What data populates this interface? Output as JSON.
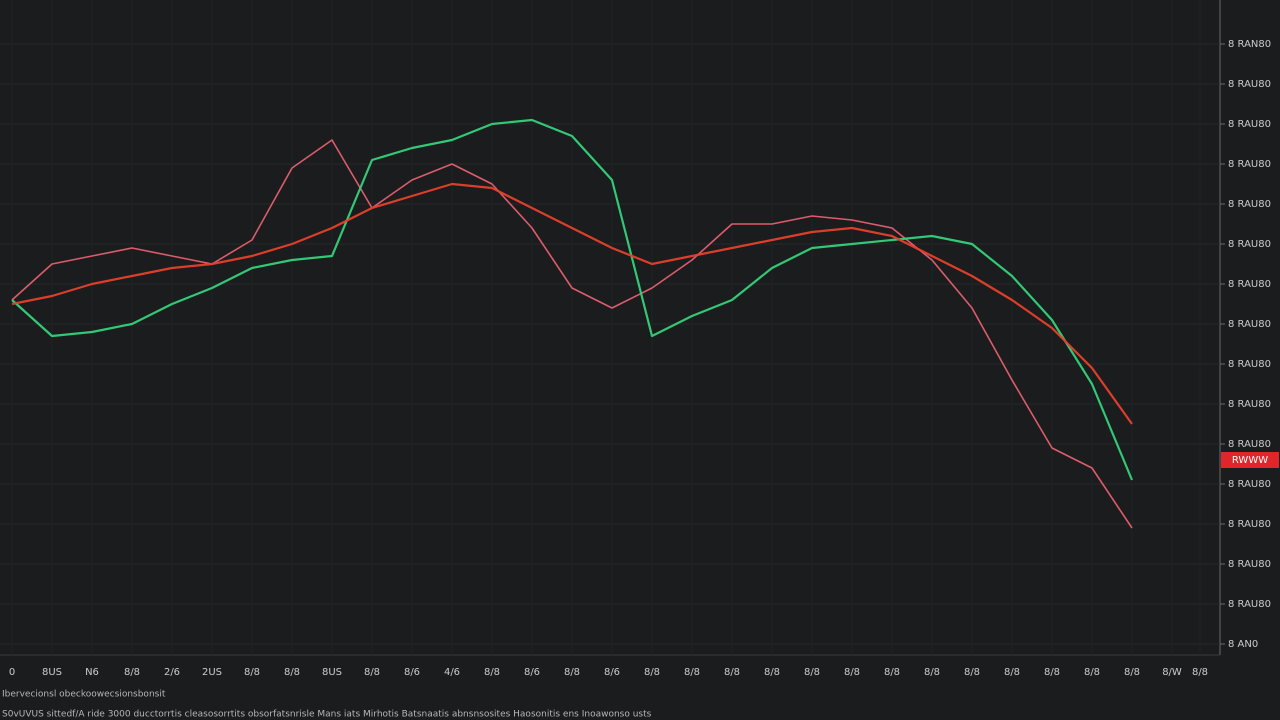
{
  "chart_data": {
    "type": "line",
    "categories": [
      "0",
      "8US",
      "N6",
      "8/8",
      "2/6",
      "2US",
      "8/8",
      "8/8",
      "8US",
      "8/8",
      "8/6",
      "4/6",
      "8/8",
      "8/6",
      "8/8",
      "8/6",
      "8/8",
      "8/8",
      "8/8",
      "8/8",
      "8/8",
      "8/8",
      "8/8",
      "8/8",
      "8/8",
      "8/8",
      "8/8",
      "8/8",
      "8/8",
      "8/W",
      "8/8"
    ],
    "series": [
      {
        "color": "#e86070",
        "values": [
          8.6,
          9.5,
          9.7,
          9.9,
          9.7,
          9.5,
          10.1,
          11.9,
          12.6,
          10.9,
          11.6,
          12.0,
          11.5,
          10.4,
          8.9,
          8.4,
          8.9,
          9.6,
          10.5,
          10.5,
          10.7,
          10.6,
          10.4,
          9.6,
          8.4,
          6.6,
          4.9,
          4.4,
          2.9,
          null,
          null
        ]
      },
      {
        "color": "#34d27a",
        "values": [
          8.6,
          7.7,
          7.8,
          8.0,
          8.5,
          8.9,
          9.4,
          9.6,
          9.7,
          12.1,
          12.4,
          12.6,
          13.0,
          13.1,
          12.7,
          11.6,
          7.7,
          8.2,
          8.6,
          9.4,
          9.9,
          10.0,
          10.1,
          10.2,
          10.0,
          9.2,
          8.1,
          6.5,
          4.1,
          null,
          null
        ]
      },
      {
        "color": "#e8402a",
        "values": [
          8.5,
          8.7,
          9.0,
          9.2,
          9.4,
          9.5,
          9.7,
          10.0,
          10.4,
          10.9,
          11.2,
          11.5,
          11.4,
          10.9,
          10.4,
          9.9,
          9.5,
          9.7,
          9.9,
          10.1,
          10.3,
          10.4,
          10.2,
          9.7,
          9.2,
          8.6,
          7.9,
          6.9,
          5.5,
          null,
          null
        ]
      }
    ],
    "ylim": [
      -0.4,
      15.6
    ],
    "yticks": [
      {
        "value": 0,
        "label": "8 AN0"
      },
      {
        "value": 1,
        "label": "8 RAU80"
      },
      {
        "value": 2,
        "label": "8 RAU80"
      },
      {
        "value": 3,
        "label": "8 RAU80"
      },
      {
        "value": 4,
        "label": "8 RAU80"
      },
      {
        "value": 5,
        "label": "8 RAU80"
      },
      {
        "value": 6,
        "label": "8 RAU80"
      },
      {
        "value": 7,
        "label": "8 RAU80"
      },
      {
        "value": 8,
        "label": "8 RAU80"
      },
      {
        "value": 9,
        "label": "8 RAU80"
      },
      {
        "value": 10,
        "label": "8 RAU80"
      },
      {
        "value": 11,
        "label": "8 RAU80"
      },
      {
        "value": 12,
        "label": "8 RAU80"
      },
      {
        "value": 13,
        "label": "8 RAU80"
      },
      {
        "value": 14,
        "label": "8 RAU80"
      },
      {
        "value": 15,
        "label": "8 RAN80"
      }
    ],
    "grid": true,
    "annotation": {
      "label": "RWWW",
      "value": 4.6
    },
    "footer": [
      "Ibervecionsl obeckoowecsionsbonsit",
      "S0vUVUS  sittedf/A  ride 3000  ducctorrtis  cleasosorrtits  obsorfatsnrisle  Mans iats  Mirhotis  Batsnaatis  abnsnsosites  Haosonitis  ens  Inoawonso usts"
    ]
  }
}
